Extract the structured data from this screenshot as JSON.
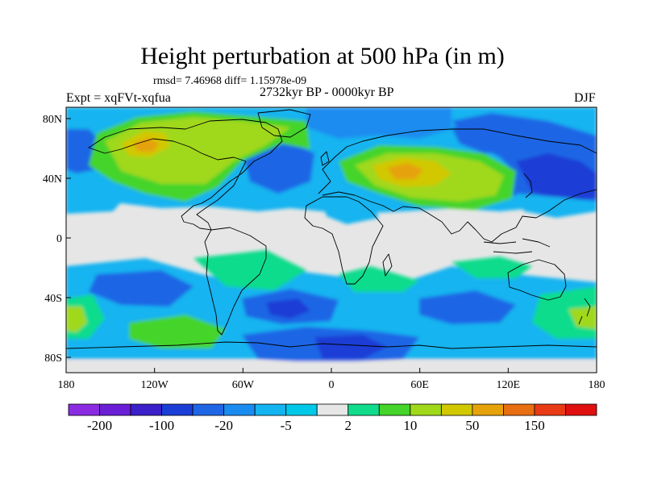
{
  "title": "Height perturbation at 500 hPa (in m)",
  "stats": "rmsd= 7.46968 diff= 1.15978e-09",
  "experiment": "Expt = xqFVt-xqfua",
  "period": "2732kyr BP - 0000kyr BP",
  "season": "DJF",
  "map": {
    "lon_range": [
      -180,
      180
    ],
    "lat_range": [
      -90,
      90
    ],
    "lat_ticks": [
      "80N",
      "40N",
      "0",
      "40S",
      "80S"
    ],
    "lon_ticks": [
      "180",
      "120W",
      "60W",
      "0",
      "60E",
      "120E",
      "180"
    ]
  },
  "colorbar": {
    "colors": [
      "#8a2be2",
      "#6a1fd6",
      "#3b1fc8",
      "#1a3ed6",
      "#1f66e5",
      "#1a8cf0",
      "#14b4f0",
      "#00c8e8",
      "#e6e6e6",
      "#10dc8c",
      "#44d42a",
      "#a0d81a",
      "#d2c800",
      "#e6a20a",
      "#e86e12",
      "#e83a14",
      "#e01010"
    ],
    "labels": [
      "-200",
      "-100",
      "-20",
      "-5",
      "2",
      "10",
      "50",
      "150"
    ]
  }
}
